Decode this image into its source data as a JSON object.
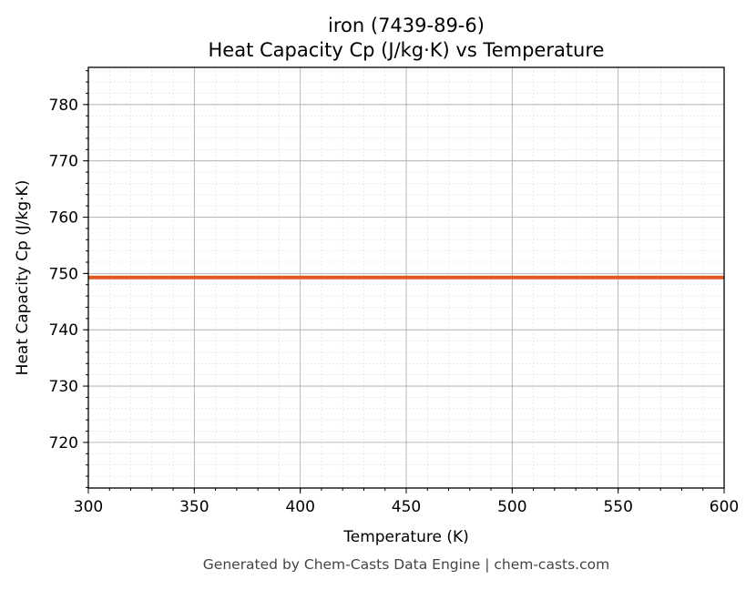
{
  "chart_data": {
    "type": "line",
    "title": "iron (7439-89-6)",
    "subtitle": "Heat Capacity Cp (J/kg·K) vs Temperature",
    "xlabel": "Temperature (K)",
    "ylabel": "Heat Capacity Cp (J/kg·K)",
    "xlim": [
      300,
      600
    ],
    "ylim": [
      711.9,
      786.6
    ],
    "xticks": [
      300,
      350,
      400,
      450,
      500,
      550,
      600
    ],
    "yticks": [
      720,
      730,
      740,
      750,
      760,
      770,
      780
    ],
    "grid": true,
    "series": [
      {
        "x": [
          300,
          600
        ],
        "y": [
          749.3,
          749.3
        ],
        "color": "#e05a20"
      }
    ],
    "footer": "Generated by Chem-Casts Data Engine | chem-casts.com"
  }
}
